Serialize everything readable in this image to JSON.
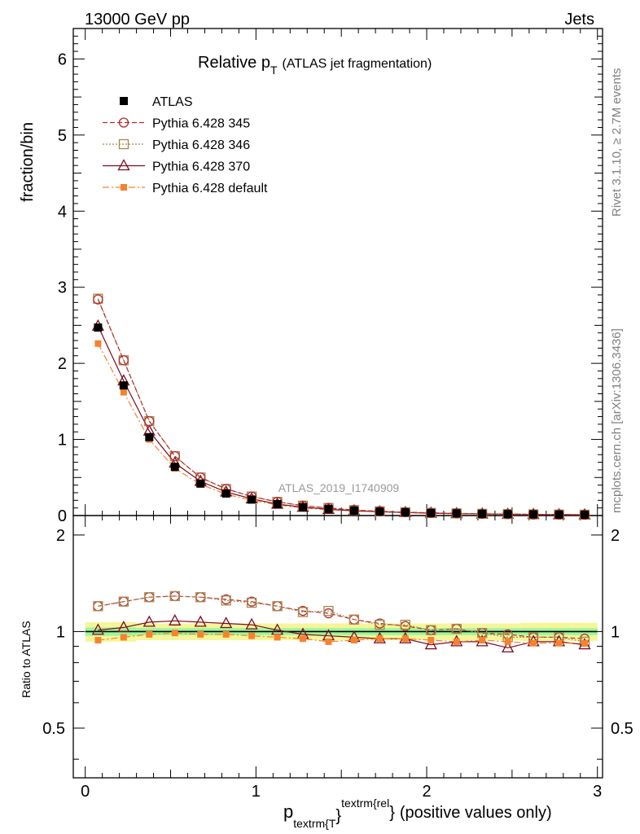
{
  "header": {
    "left": "13000 GeV pp",
    "right": "Jets"
  },
  "plot_title": {
    "main": "Relative p",
    "main_sub": "T",
    "suffix": "(ATLAS jet fragmentation)"
  },
  "ylabel_main": "fraction/bin",
  "ylabel_ratio": "Ratio to ATLAS",
  "xlabel": {
    "p": "p",
    "sub": "textrm{T",
    "close_sub": "}",
    "sup": "textrm{rel",
    "close_sup": "}",
    "tail": "(positive values only)"
  },
  "side_text": {
    "rivet": "Rivet 3.1.10, ≥ 2.7M events",
    "mcplots": "mcplots.cern.ch [arXiv:1306.3436]"
  },
  "watermark": "ATLAS_2019_I1740909",
  "colors": {
    "data": "#000000",
    "p345": "#b22c2c",
    "p346": "#a8864a",
    "p370": "#7e0a1e",
    "pdefault": "#f6822e",
    "band_yellow": "#f5f59a",
    "band_green": "#9ef59a",
    "side_text": "#808080"
  },
  "chart_data": [
    {
      "type": "scatter",
      "panel": "main",
      "x": [
        0.075,
        0.225,
        0.375,
        0.525,
        0.675,
        0.825,
        0.975,
        1.125,
        1.275,
        1.425,
        1.575,
        1.725,
        1.875,
        2.025,
        2.175,
        2.325,
        2.475,
        2.625,
        2.775,
        2.925
      ],
      "xlim": [
        -0.07,
        3.03
      ],
      "ylim": [
        0,
        6.4
      ],
      "yticks": [
        "0",
        "1",
        "2",
        "3",
        "4",
        "5",
        "6"
      ],
      "xticks": [
        "0",
        "1",
        "2",
        "3"
      ],
      "series": [
        {
          "key": "data",
          "name": "ATLAS",
          "marker": "filled-square",
          "values": [
            2.47,
            1.71,
            1.03,
            0.64,
            0.42,
            0.29,
            0.21,
            0.15,
            0.11,
            0.085,
            0.065,
            0.052,
            0.042,
            0.034,
            0.028,
            0.023,
            0.019,
            0.016,
            0.013,
            0.011
          ]
        },
        {
          "key": "p345",
          "name": "Pythia 6.428 345",
          "marker": "open-circle",
          "dash": "6,3",
          "values": [
            2.84,
            2.04,
            1.24,
            0.78,
            0.5,
            0.35,
            0.25,
            0.18,
            0.13,
            0.1,
            0.072,
            0.056,
            0.044,
            0.035,
            0.029,
            0.023,
            0.019,
            0.015,
            0.013,
            0.011
          ]
        },
        {
          "key": "p346",
          "name": "Pythia 6.428 346",
          "marker": "open-square",
          "dash": "2,2",
          "values": [
            2.85,
            2.04,
            1.24,
            0.78,
            0.5,
            0.35,
            0.25,
            0.18,
            0.13,
            0.1,
            0.072,
            0.056,
            0.044,
            0.035,
            0.029,
            0.023,
            0.019,
            0.015,
            0.013,
            0.011
          ]
        },
        {
          "key": "p370",
          "name": "Pythia 6.428 370",
          "marker": "open-triangle",
          "dash": "",
          "values": [
            2.49,
            1.77,
            1.11,
            0.69,
            0.45,
            0.31,
            0.22,
            0.15,
            0.11,
            0.082,
            0.063,
            0.05,
            0.04,
            0.031,
            0.026,
            0.021,
            0.017,
            0.015,
            0.012,
            0.01
          ]
        },
        {
          "key": "pdefault",
          "name": "Pythia 6.428 default",
          "marker": "small-filled-square",
          "dash": "8,3,2,3",
          "values": [
            2.26,
            1.62,
            1.0,
            0.62,
            0.41,
            0.28,
            0.2,
            0.14,
            0.1,
            0.078,
            0.061,
            0.049,
            0.04,
            0.032,
            0.026,
            0.022,
            0.018,
            0.015,
            0.012,
            0.01
          ]
        }
      ]
    },
    {
      "type": "line",
      "panel": "ratio",
      "x": [
        0.075,
        0.225,
        0.375,
        0.525,
        0.675,
        0.825,
        0.975,
        1.125,
        1.275,
        1.425,
        1.575,
        1.725,
        1.875,
        2.025,
        2.175,
        2.325,
        2.475,
        2.625,
        2.775,
        2.925
      ],
      "ylim": [
        0.35,
        2.3
      ],
      "yticks": [
        "0.5",
        "1",
        "2"
      ],
      "band_green": [
        0.03,
        0.03,
        0.025,
        0.025,
        0.025,
        0.025,
        0.025,
        0.025,
        0.025,
        0.025,
        0.025,
        0.025,
        0.025,
        0.025,
        0.025,
        0.025,
        0.025,
        0.025,
        0.025,
        0.025
      ],
      "band_yellow": [
        0.07,
        0.07,
        0.06,
        0.06,
        0.06,
        0.06,
        0.06,
        0.06,
        0.06,
        0.06,
        0.06,
        0.06,
        0.06,
        0.06,
        0.06,
        0.06,
        0.06,
        0.065,
        0.065,
        0.065
      ],
      "series": [
        {
          "key": "p345",
          "values": [
            1.2,
            1.24,
            1.28,
            1.29,
            1.28,
            1.26,
            1.24,
            1.2,
            1.16,
            1.14,
            1.09,
            1.06,
            1.04,
            1.01,
            1.02,
            0.99,
            0.98,
            0.96,
            0.96,
            0.95
          ]
        },
        {
          "key": "p346",
          "values": [
            1.2,
            1.24,
            1.28,
            1.29,
            1.28,
            1.25,
            1.23,
            1.2,
            1.15,
            1.16,
            1.09,
            1.05,
            1.05,
            1.01,
            1.02,
            0.99,
            0.96,
            0.96,
            0.96,
            0.93
          ]
        },
        {
          "key": "p370",
          "values": [
            1.01,
            1.03,
            1.07,
            1.08,
            1.07,
            1.06,
            1.05,
            1.01,
            0.98,
            0.97,
            0.96,
            0.95,
            0.95,
            0.91,
            0.93,
            0.93,
            0.89,
            0.93,
            0.93,
            0.91
          ]
        },
        {
          "key": "pdefault",
          "values": [
            0.94,
            0.96,
            0.98,
            0.99,
            0.98,
            0.98,
            0.97,
            0.96,
            0.95,
            0.93,
            0.94,
            0.95,
            0.95,
            0.94,
            0.93,
            0.94,
            0.93,
            0.92,
            0.92,
            0.92
          ]
        }
      ]
    }
  ]
}
